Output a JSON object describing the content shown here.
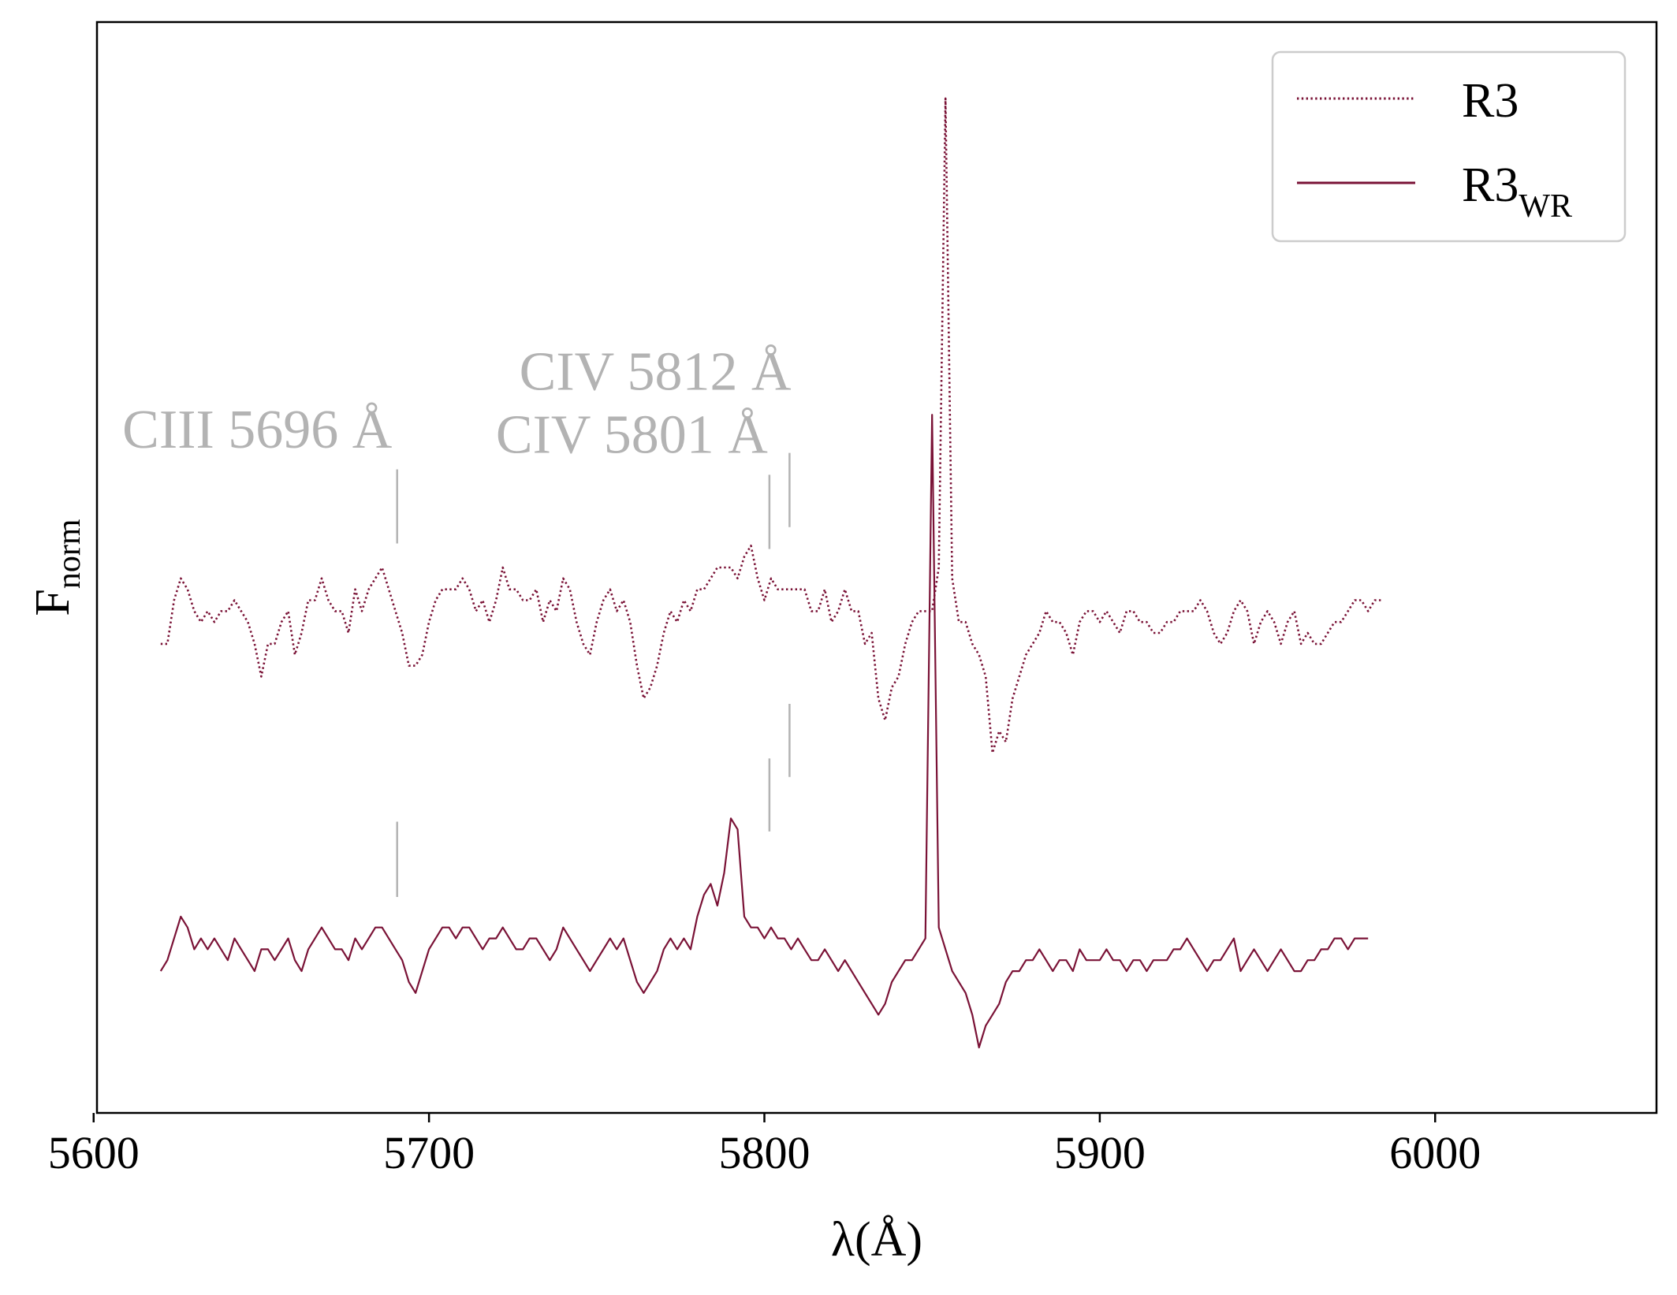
{
  "chart_data": {
    "type": "line",
    "xlabel": "λ(Å)",
    "ylabel": {
      "main": "F",
      "sub": "norm"
    },
    "xlim": [
      5601,
      6066
    ],
    "ylim": [
      0,
      1
    ],
    "xticks": [
      5600,
      5700,
      5800,
      5900,
      6000
    ],
    "xtick_labels": [
      "5600",
      "5700",
      "5800",
      "5900",
      "6000"
    ],
    "yticks_shown": false,
    "grid": false,
    "legend_position": "top-right",
    "colors": {
      "series": "#7a1236",
      "annotation": "#b3b3b3"
    },
    "series": [
      {
        "name": "R3",
        "legend_main": "R3",
        "legend_sub": "",
        "style": "dotted",
        "x_start": 5620,
        "x_step": 2,
        "values": [
          0.43,
          0.43,
          0.47,
          0.49,
          0.48,
          0.46,
          0.45,
          0.46,
          0.45,
          0.46,
          0.46,
          0.47,
          0.46,
          0.45,
          0.43,
          0.4,
          0.43,
          0.43,
          0.45,
          0.46,
          0.42,
          0.44,
          0.47,
          0.47,
          0.49,
          0.47,
          0.46,
          0.46,
          0.44,
          0.48,
          0.46,
          0.48,
          0.49,
          0.5,
          0.48,
          0.46,
          0.44,
          0.41,
          0.41,
          0.42,
          0.45,
          0.47,
          0.48,
          0.48,
          0.48,
          0.49,
          0.48,
          0.46,
          0.47,
          0.45,
          0.47,
          0.5,
          0.48,
          0.48,
          0.47,
          0.47,
          0.48,
          0.45,
          0.47,
          0.46,
          0.49,
          0.48,
          0.45,
          0.43,
          0.42,
          0.45,
          0.47,
          0.48,
          0.46,
          0.47,
          0.45,
          0.41,
          0.38,
          0.39,
          0.41,
          0.44,
          0.46,
          0.45,
          0.47,
          0.46,
          0.48,
          0.48,
          0.49,
          0.5,
          0.5,
          0.5,
          0.49,
          0.51,
          0.52,
          0.49,
          0.47,
          0.49,
          0.48,
          0.48,
          0.48,
          0.48,
          0.48,
          0.46,
          0.46,
          0.48,
          0.45,
          0.46,
          0.48,
          0.46,
          0.46,
          0.43,
          0.44,
          0.38,
          0.36,
          0.39,
          0.4,
          0.43,
          0.45,
          0.46,
          0.46,
          0.46,
          0.5,
          0.93,
          0.49,
          0.45,
          0.45,
          0.43,
          0.42,
          0.4,
          0.33,
          0.35,
          0.34,
          0.38,
          0.4,
          0.42,
          0.43,
          0.44,
          0.46,
          0.45,
          0.45,
          0.44,
          0.42,
          0.45,
          0.46,
          0.46,
          0.45,
          0.46,
          0.45,
          0.44,
          0.46,
          0.46,
          0.45,
          0.45,
          0.44,
          0.44,
          0.45,
          0.45,
          0.46,
          0.46,
          0.46,
          0.47,
          0.46,
          0.44,
          0.43,
          0.44,
          0.46,
          0.47,
          0.46,
          0.43,
          0.45,
          0.46,
          0.45,
          0.43,
          0.45,
          0.46,
          0.43,
          0.44,
          0.43,
          0.43,
          0.44,
          0.45,
          0.45,
          0.46,
          0.47,
          0.47,
          0.46,
          0.47,
          0.47
        ]
      },
      {
        "name": "R3WR",
        "legend_main": "R3",
        "legend_sub": "WR",
        "style": "solid",
        "x_start": 5620,
        "x_step": 2,
        "values": [
          0.13,
          0.14,
          0.16,
          0.18,
          0.17,
          0.15,
          0.16,
          0.15,
          0.16,
          0.15,
          0.14,
          0.16,
          0.15,
          0.14,
          0.13,
          0.15,
          0.15,
          0.14,
          0.15,
          0.16,
          0.14,
          0.13,
          0.15,
          0.16,
          0.17,
          0.16,
          0.15,
          0.15,
          0.14,
          0.16,
          0.15,
          0.16,
          0.17,
          0.17,
          0.16,
          0.15,
          0.14,
          0.12,
          0.11,
          0.13,
          0.15,
          0.16,
          0.17,
          0.17,
          0.16,
          0.17,
          0.17,
          0.16,
          0.15,
          0.16,
          0.16,
          0.17,
          0.16,
          0.15,
          0.15,
          0.16,
          0.16,
          0.15,
          0.14,
          0.15,
          0.17,
          0.16,
          0.15,
          0.14,
          0.13,
          0.14,
          0.15,
          0.16,
          0.15,
          0.16,
          0.14,
          0.12,
          0.11,
          0.12,
          0.13,
          0.15,
          0.16,
          0.15,
          0.16,
          0.15,
          0.18,
          0.2,
          0.21,
          0.19,
          0.22,
          0.27,
          0.26,
          0.18,
          0.17,
          0.17,
          0.16,
          0.17,
          0.16,
          0.16,
          0.15,
          0.16,
          0.15,
          0.14,
          0.14,
          0.15,
          0.14,
          0.13,
          0.14,
          0.13,
          0.12,
          0.11,
          0.1,
          0.09,
          0.1,
          0.12,
          0.13,
          0.14,
          0.14,
          0.15,
          0.16,
          0.64,
          0.17,
          0.15,
          0.13,
          0.12,
          0.11,
          0.09,
          0.06,
          0.08,
          0.09,
          0.1,
          0.12,
          0.13,
          0.13,
          0.14,
          0.14,
          0.15,
          0.14,
          0.13,
          0.14,
          0.14,
          0.13,
          0.15,
          0.14,
          0.14,
          0.14,
          0.15,
          0.14,
          0.14,
          0.13,
          0.14,
          0.14,
          0.13,
          0.14,
          0.14,
          0.14,
          0.15,
          0.15,
          0.16,
          0.15,
          0.14,
          0.13,
          0.14,
          0.14,
          0.15,
          0.16,
          0.13,
          0.14,
          0.15,
          0.14,
          0.13,
          0.14,
          0.15,
          0.14,
          0.13,
          0.13,
          0.14,
          0.14,
          0.15,
          0.15,
          0.16,
          0.16,
          0.15,
          0.16,
          0.16,
          0.16
        ]
      }
    ],
    "annotations": [
      {
        "text": "CIII 5696 Å",
        "x": 5690.5,
        "label_align": "end",
        "label_x": 5689,
        "label_y": 0.61,
        "upper_marks": [
          0.59,
          0.522
        ],
        "lower_marks": [
          0.267,
          0.198
        ]
      },
      {
        "text": "CIV 5801 Å",
        "x": 5801.5,
        "label_align": "end",
        "label_x": 5801,
        "label_y": 0.605,
        "upper_marks": [
          0.585,
          0.517
        ],
        "lower_marks": [
          0.325,
          0.258
        ]
      },
      {
        "text": "CIV 5812 Å",
        "x": 5807.5,
        "label_align": "end",
        "label_x": 5808,
        "label_y": 0.663,
        "upper_marks": [
          0.605,
          0.537
        ],
        "lower_marks": [
          0.375,
          0.308
        ]
      }
    ]
  }
}
